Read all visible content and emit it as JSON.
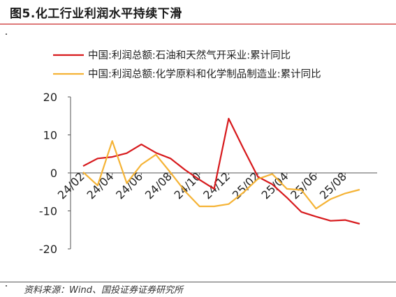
{
  "header": {
    "title": "图5.化工行业利润水平持续下滑"
  },
  "footer": {
    "source": "资料来源：Wind、国投证券证券研究所"
  },
  "chart_data": {
    "type": "line",
    "title": "图5.化工行业利润水平持续下滑",
    "xlabel": "",
    "ylabel": "",
    "ylim": [
      -20,
      20
    ],
    "yticks": [
      20,
      10,
      0,
      -10,
      -20
    ],
    "grid": false,
    "legend_position": "top-left",
    "x": [
      "2024-02",
      "2024-03",
      "2024-04",
      "2024-05",
      "2024-06",
      "2024-07",
      "2024-08",
      "2024-09",
      "2024-10",
      "2024-11",
      "2024-12",
      "2025-01",
      "2025-02",
      "2025-03",
      "2025-04",
      "2025-05",
      "2025-06",
      "2025-07",
      "2025-08",
      "2025-09"
    ],
    "xtick_labels": [
      "24/02",
      "24/04",
      "24/06",
      "24/08",
      "24/10",
      "24/12",
      "25/02",
      "25/04",
      "25/06",
      "25/08"
    ],
    "series": [
      {
        "name": "中国:利润总额:石油和天然气开采业:累计同比",
        "color": "#d7191c",
        "values": [
          1.8,
          3.8,
          4.2,
          5.2,
          7.5,
          5.3,
          3.8,
          0.8,
          -1.8,
          -4.2,
          14.3,
          6.5,
          -1.0,
          -3.0,
          -6.5,
          -10.3,
          -11.5,
          -12.6,
          -12.4,
          -13.4
        ]
      },
      {
        "name": "中国:利润总额:化学原料和化学制品制造业:累计同比",
        "color": "#f5b335",
        "values": [
          0.2,
          -3.3,
          8.4,
          -2.7,
          2.2,
          4.8,
          0.1,
          -4.8,
          -8.8,
          -8.8,
          -8.2,
          -5.2,
          -1.6,
          -0.3,
          -4.2,
          -4.5,
          -9.4,
          -6.9,
          -5.4,
          -4.4
        ]
      }
    ]
  }
}
